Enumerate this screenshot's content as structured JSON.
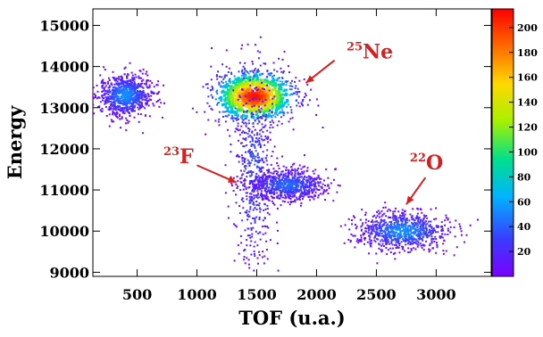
{
  "chart_data": {
    "type": "heatmap",
    "title": "",
    "xlabel": "TOF (u.a.)",
    "ylabel": "Energy",
    "xlim": [
      130,
      3460
    ],
    "ylim": [
      8900,
      15400
    ],
    "x_ticks": [
      500,
      1000,
      1500,
      2000,
      2500,
      3000
    ],
    "y_ticks": [
      9000,
      10000,
      11000,
      12000,
      13000,
      14000,
      15000
    ],
    "colorbar": {
      "min": 0,
      "max": 215,
      "ticks": [
        20,
        40,
        60,
        80,
        100,
        120,
        140,
        160,
        180,
        200
      ],
      "colormap": [
        "#7a00ff",
        "#3a3cff",
        "#00b4ff",
        "#00e08a",
        "#a8f000",
        "#ffd800",
        "#ff6a00",
        "#ff0000"
      ]
    },
    "clusters": [
      {
        "x": 400,
        "y": 13300,
        "sx": 110,
        "sy": 250,
        "peak": 50,
        "density": 0.95
      },
      {
        "x": 1480,
        "y": 13270,
        "sx": 180,
        "sy": 330,
        "peak": 210,
        "density": 1.0
      },
      {
        "x": 1480,
        "y": 11400,
        "sx": 85,
        "sy": 1200,
        "peak": 35,
        "density": 0.55
      },
      {
        "x": 1760,
        "y": 11120,
        "sx": 160,
        "sy": 190,
        "peak": 40,
        "density": 0.9
      },
      {
        "x": 2720,
        "y": 10000,
        "sx": 190,
        "sy": 230,
        "peak": 50,
        "density": 0.95
      }
    ],
    "annotations": [
      {
        "label": "Ne",
        "mass": "25",
        "x": 2250,
        "y": 14200,
        "arrow_from": [
          2150,
          14150
        ],
        "arrow_to": [
          1910,
          13600
        ]
      },
      {
        "label": "F",
        "mass": "23",
        "x": 720,
        "y": 11650,
        "arrow_from": [
          1000,
          11600
        ],
        "arrow_to": [
          1330,
          11180
        ]
      },
      {
        "label": "O",
        "mass": "22",
        "x": 2780,
        "y": 11500,
        "arrow_from": [
          2910,
          11300
        ],
        "arrow_to": [
          2750,
          10650
        ]
      }
    ],
    "grid": false,
    "legend": "none"
  }
}
